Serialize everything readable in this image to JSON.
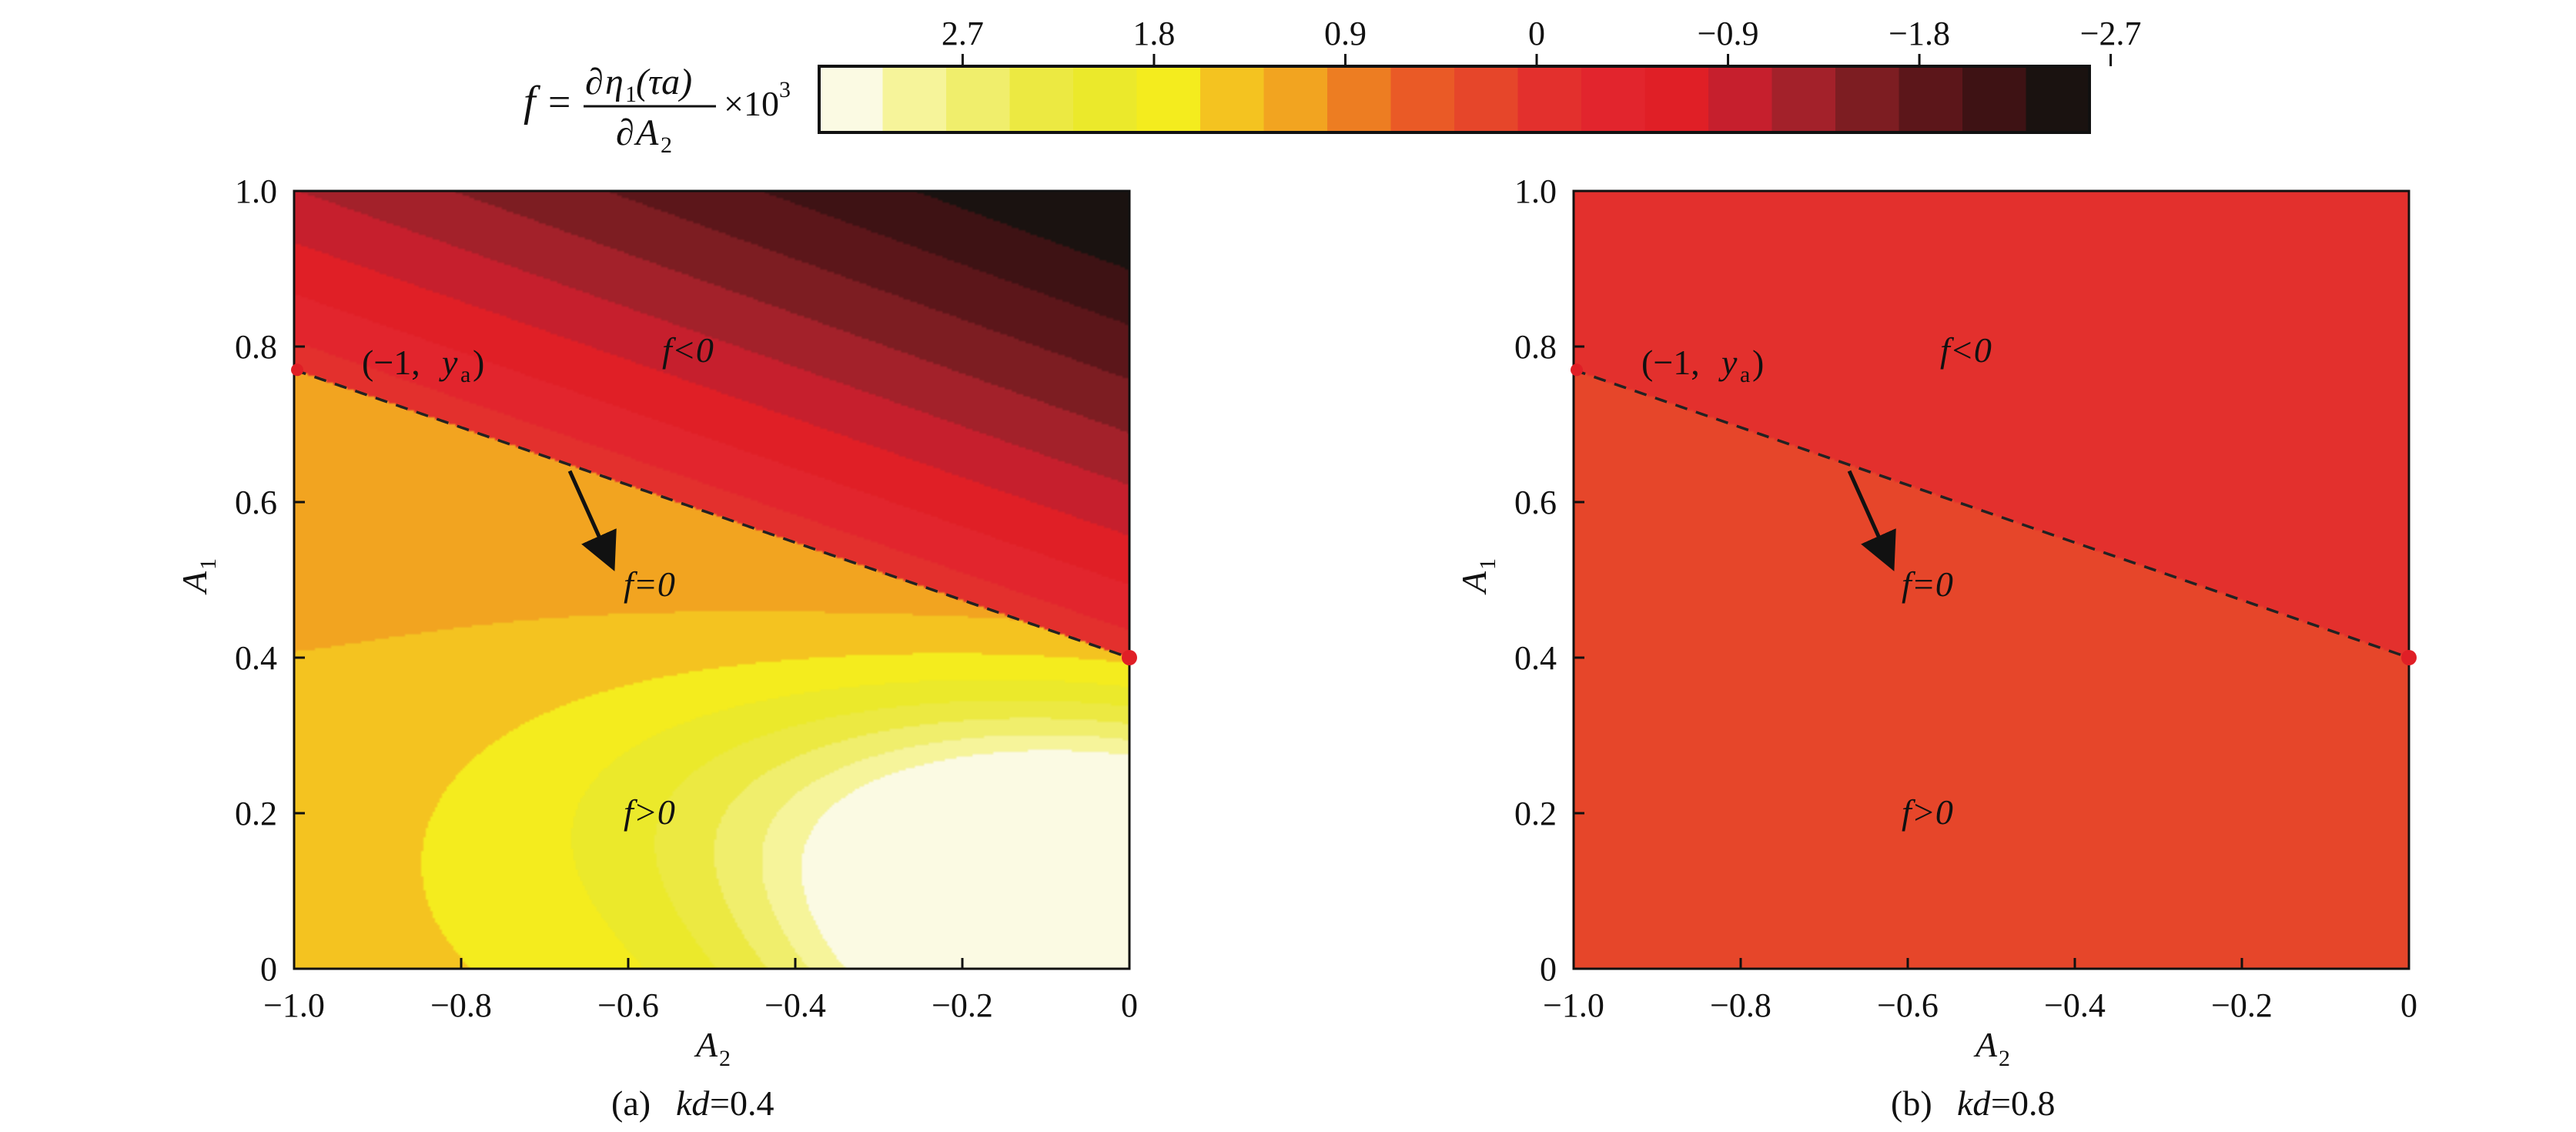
{
  "chart_data": {
    "type": "heatmap",
    "colorbar": {
      "ticks": [
        "2.7",
        "1.8",
        "0.9",
        "0",
        "−0.9",
        "−1.8",
        "−2.7"
      ],
      "tick_values": [
        2.7,
        1.8,
        0.9,
        0,
        -0.9,
        -1.8,
        -2.7
      ],
      "range": [
        3.375,
        -2.6
      ],
      "colors": [
        "#fbfae3",
        "#f6f49a",
        "#f0ee6c",
        "#ece942",
        "#ebe92b",
        "#f4ec1e",
        "#f4c320",
        "#f2a420",
        "#ed7d22",
        "#ea5a26",
        "#e6462a",
        "#e3302d",
        "#e2252d",
        "#e01f26",
        "#c61f2d",
        "#a3212a",
        "#7d1d22",
        "#5c161a",
        "#3e1214",
        "#1a1210"
      ],
      "label": {
        "f": "f",
        "eq": "=",
        "num_d": "∂",
        "num_eta": "η",
        "num_sub": "1",
        "num_arg": " (τa)",
        "den_d": "∂",
        "den_A": "A",
        "den_sub": "2",
        "mult": "×10",
        "exp": "3"
      }
    },
    "panels": [
      {
        "caption_prefix": "(a) ",
        "caption_var": "kd",
        "caption_value": "=0.4",
        "xlabel": "A",
        "xlabel_sub": "2",
        "ylabel": "A",
        "ylabel_sub": "1",
        "xlim": [
          -1.0,
          0
        ],
        "ylim": [
          0,
          1.0
        ],
        "xticks": [
          "−1.0",
          "−0.8",
          "−0.6",
          "−0.4",
          "−0.2",
          "0"
        ],
        "yticks": [
          "0",
          "0.2",
          "0.4",
          "0.6",
          "0.8",
          "1.0"
        ],
        "field": {
          "s": 0.4,
          "x0": -1.0,
          "y0": 0.77,
          "x1": 0,
          "y1": 0.4
        },
        "dashed_line": {
          "x0": -1.0,
          "y0": 0.77,
          "x1": 0,
          "y1": 0.4
        },
        "marker": {
          "x": 0,
          "y": 0.4
        },
        "arrow": {
          "x0": -0.67,
          "y0": 0.64,
          "x1": -0.62,
          "y1": 0.52
        },
        "annotations": {
          "point_label_prefix": "(−1, ",
          "point_label_var": "y",
          "point_label_sub": "a",
          "point_label_suffix": ")",
          "neg_label": "f<0",
          "zero_label": "f=0",
          "pos_label": "f>0"
        }
      },
      {
        "caption_prefix": "(b) ",
        "caption_var": "kd",
        "caption_value": "=0.8",
        "xlabel": "A",
        "xlabel_sub": "2",
        "ylabel": "A",
        "ylabel_sub": "1",
        "xlim": [
          -1.0,
          0
        ],
        "ylim": [
          0,
          1.0
        ],
        "xticks": [
          "−1.0",
          "−0.8",
          "−0.6",
          "−0.4",
          "−0.2",
          "0"
        ],
        "yticks": [
          "0",
          "0.2",
          "0.4",
          "0.6",
          "0.8",
          "1.0"
        ],
        "field": {
          "s": 0.12,
          "x0": -1.0,
          "y0": 0.77,
          "x1": 0,
          "y1": 0.4
        },
        "dashed_line": {
          "x0": -1.0,
          "y0": 0.77,
          "x1": 0,
          "y1": 0.4
        },
        "marker": {
          "x": 0,
          "y": 0.4
        },
        "arrow": {
          "x0": -0.67,
          "y0": 0.64,
          "x1": -0.62,
          "y1": 0.52
        },
        "annotations": {
          "point_label_prefix": "(−1, ",
          "point_label_var": "y",
          "point_label_sub": "a",
          "point_label_suffix": ")",
          "neg_label": "f<0",
          "zero_label": "f=0",
          "pos_label": "f>0"
        }
      }
    ]
  }
}
